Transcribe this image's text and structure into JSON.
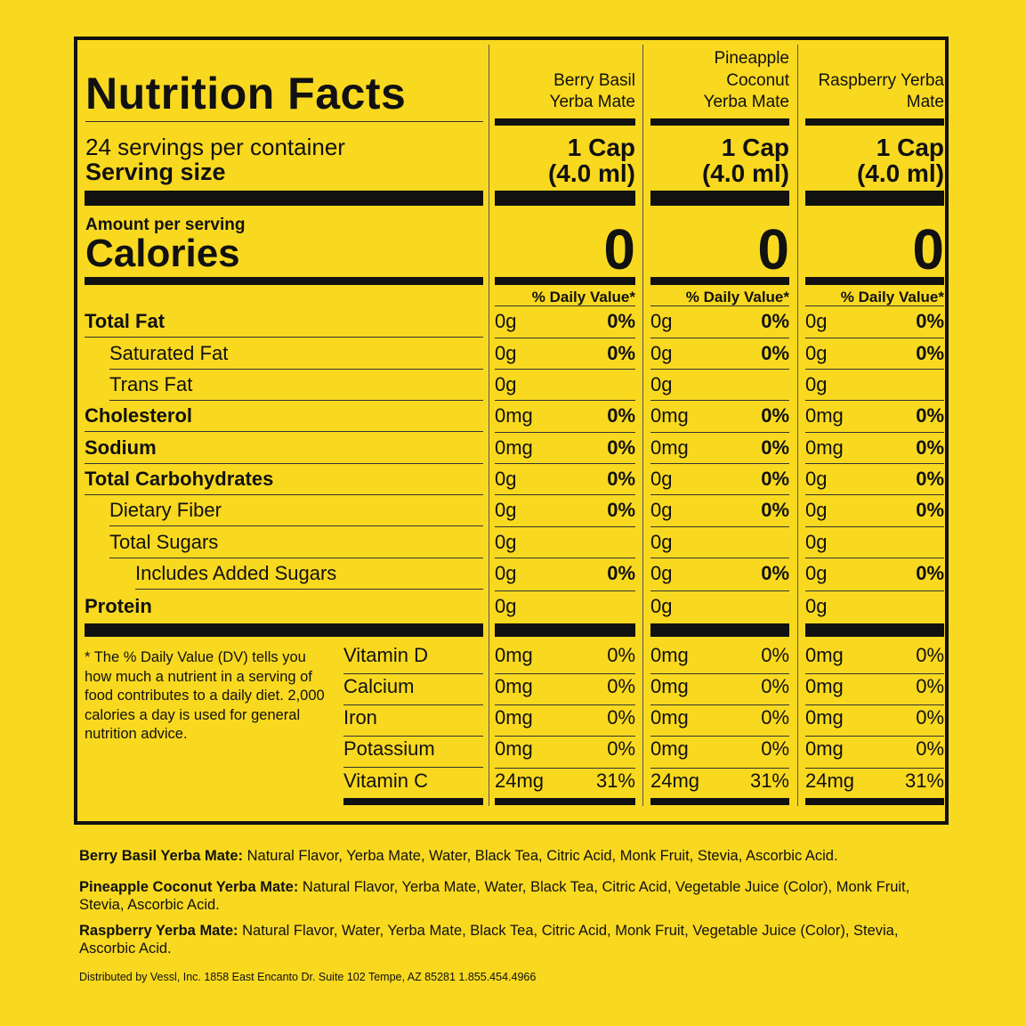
{
  "title": "Nutrition Facts",
  "servings": "24 servings per container",
  "serving_size_label": "Serving size",
  "amount_per_serving": "Amount per serving",
  "calories_label": "Calories",
  "dv_header": "% Daily Value*",
  "products": [
    {
      "name_line1": "",
      "name_line2": "Berry Basil",
      "name_line3": "Yerba Mate",
      "cap_line1": "1 Cap",
      "cap_line2": "(4.0 ml)",
      "calories": "0"
    },
    {
      "name_line1": "Pineapple",
      "name_line2": "Coconut",
      "name_line3": "Yerba Mate",
      "cap_line1": "1 Cap",
      "cap_line2": "(4.0 ml)",
      "calories": "0"
    },
    {
      "name_line1": "",
      "name_line2": "Raspberry Yerba",
      "name_line3": "Mate",
      "cap_line1": "1 Cap",
      "cap_line2": "(4.0 ml)",
      "calories": "0"
    }
  ],
  "nutrients": [
    {
      "name": "Total Fat",
      "bold": true,
      "indent": 0,
      "amount": "0g",
      "dv": "0%"
    },
    {
      "name": "Saturated Fat",
      "bold": false,
      "indent": 1,
      "amount": "0g",
      "dv": "0%"
    },
    {
      "name": "Trans Fat",
      "bold": false,
      "indent": 1,
      "amount": "0g",
      "dv": ""
    },
    {
      "name": "Cholesterol",
      "bold": true,
      "indent": 0,
      "amount": "0mg",
      "dv": "0%"
    },
    {
      "name": "Sodium",
      "bold": true,
      "indent": 0,
      "amount": "0mg",
      "dv": "0%"
    },
    {
      "name": "Total Carbohydrates",
      "bold": true,
      "indent": 0,
      "amount": "0g",
      "dv": "0%"
    },
    {
      "name": "Dietary Fiber",
      "bold": false,
      "indent": 1,
      "amount": "0g",
      "dv": "0%"
    },
    {
      "name": "Total Sugars",
      "bold": false,
      "indent": 1,
      "amount": "0g",
      "dv": ""
    },
    {
      "name": "Includes Added Sugars",
      "bold": false,
      "indent": 2,
      "amount": "0g",
      "dv": "0%"
    },
    {
      "name": "Protein",
      "bold": true,
      "indent": 0,
      "amount": "0g",
      "dv": ""
    }
  ],
  "vitamins": [
    {
      "name": "Vitamin D",
      "amount": "0mg",
      "dv": "0%"
    },
    {
      "name": "Calcium",
      "amount": "0mg",
      "dv": "0%"
    },
    {
      "name": "Iron",
      "amount": "0mg",
      "dv": "0%"
    },
    {
      "name": "Potassium",
      "amount": "0mg",
      "dv": "0%"
    },
    {
      "name": "Vitamin C",
      "amount": "24mg",
      "dv": "31%"
    }
  ],
  "footnote": "* The % Daily Value (DV) tells you how much a nutrient in a serving of food contributes to a daily diet. 2,000 calories a day is used for general nutrition advice.",
  "ingredients": [
    {
      "label": "Berry Basil Yerba Mate:",
      "text": " Natural Flavor, Yerba Mate, Water, Black Tea, Citric Acid, Monk Fruit, Stevia, Ascorbic Acid."
    },
    {
      "label": "Pineapple Coconut Yerba Mate:",
      "text": " Natural Flavor, Yerba Mate, Water, Black Tea, Citric Acid, Vegetable Juice (Color), Monk Fruit, Stevia, Ascorbic Acid."
    },
    {
      "label": "Raspberry Yerba Mate:",
      "text": " Natural Flavor, Water, Yerba Mate, Black Tea, Citric Acid, Monk Fruit, Vegetable Juice (Color), Stevia, Ascorbic Acid."
    }
  ],
  "distributor": "Distributed by Vessl, Inc. 1858 East Encanto Dr. Suite 102 Tempe, AZ 85281 1.855.454.4966"
}
